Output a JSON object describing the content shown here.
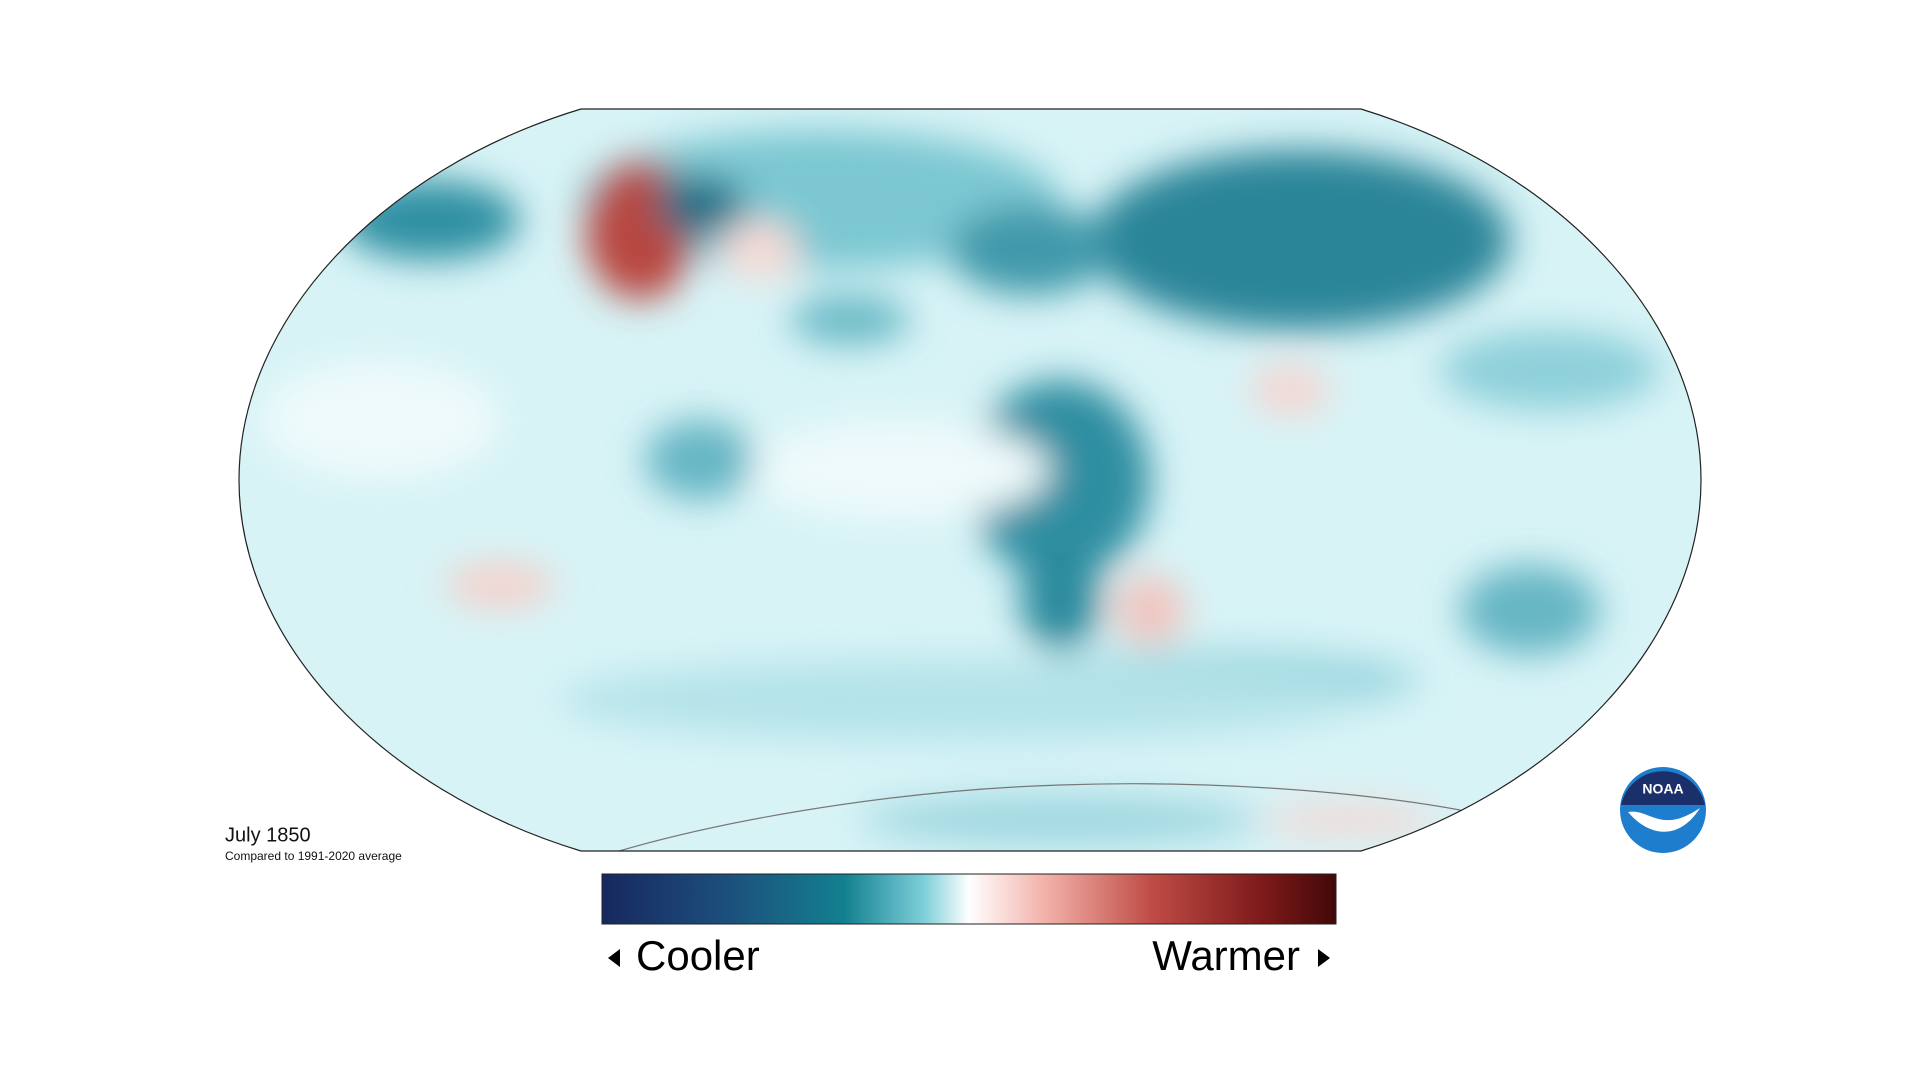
{
  "map": {
    "title": "July 1850",
    "subtitle": "Compared to 1991-2020 average"
  },
  "legend": {
    "low_label": "Cooler",
    "high_label": "Warmer"
  },
  "logo": {
    "text": "NOAA"
  }
}
